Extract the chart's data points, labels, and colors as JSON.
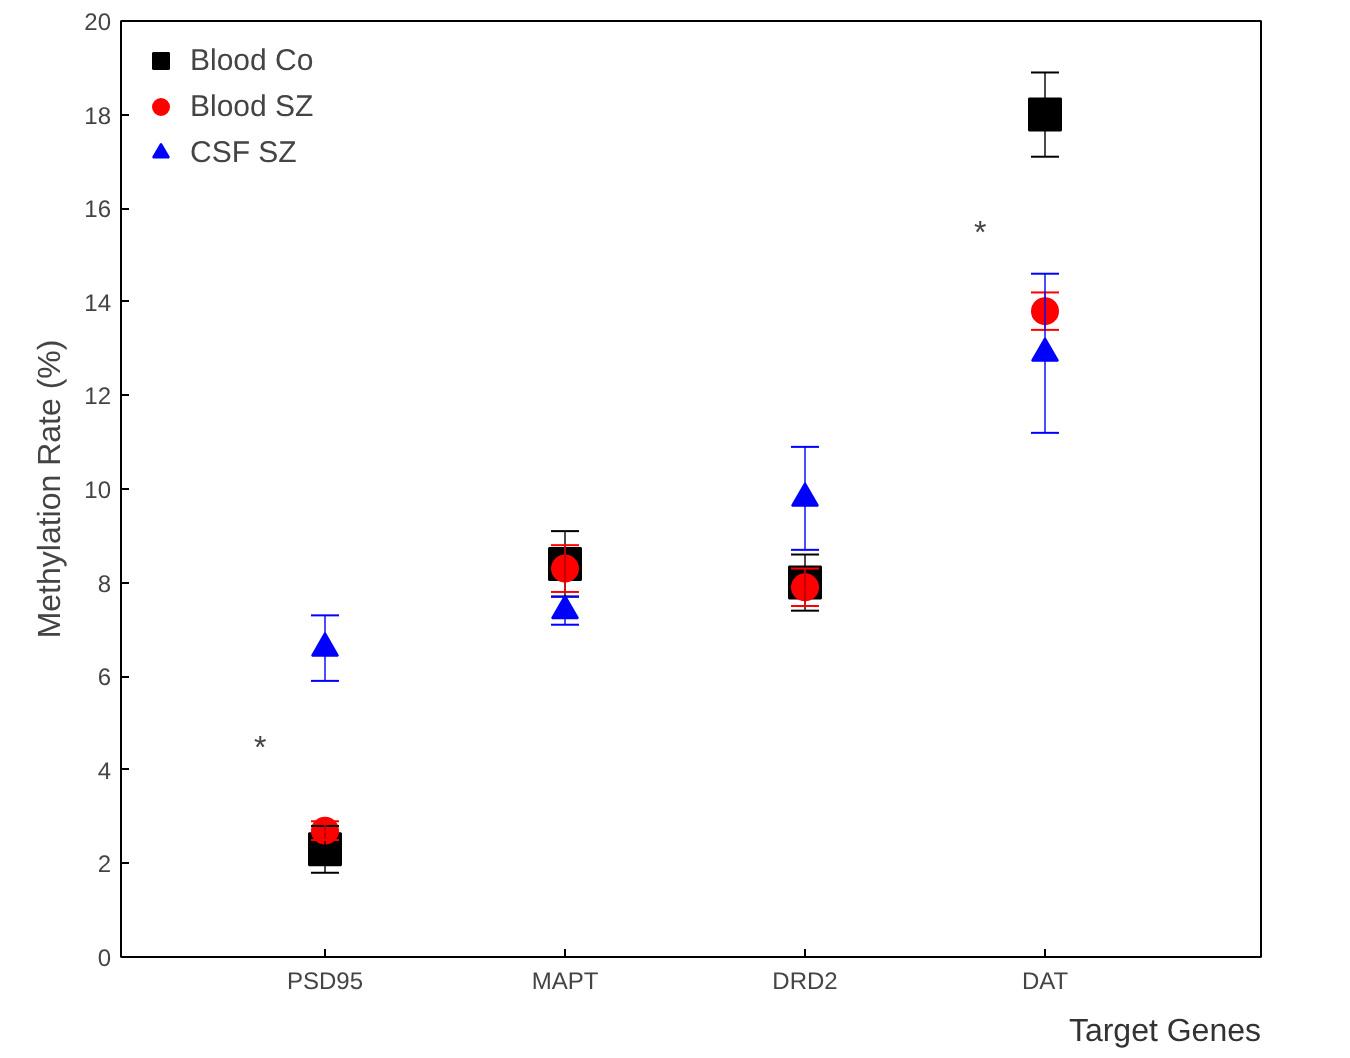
{
  "chart_data": {
    "type": "scatter",
    "xlabel": "Target Genes",
    "ylabel": "Methylation Rate (%)",
    "categories": [
      "PSD95",
      "MAPT",
      "DRD2",
      "DAT"
    ],
    "series": [
      {
        "name": "Blood Co",
        "color": "#000000",
        "marker": "square",
        "values": [
          2.3,
          8.4,
          8.0,
          18.0
        ],
        "errors": [
          0.5,
          0.7,
          0.6,
          0.9
        ]
      },
      {
        "name": "Blood SZ",
        "color": "#ff0000",
        "marker": "circle",
        "values": [
          2.7,
          8.3,
          7.9,
          13.8
        ],
        "errors": [
          0.2,
          0.5,
          0.4,
          0.4
        ]
      },
      {
        "name": "CSF SZ",
        "color": "#0000ff",
        "marker": "triangle",
        "values": [
          6.6,
          7.4,
          9.8,
          12.9
        ],
        "errors": [
          0.7,
          0.3,
          1.1,
          1.7
        ]
      }
    ],
    "ylim": [
      0,
      20
    ],
    "yticks": [
      0,
      2,
      4,
      6,
      8,
      10,
      12,
      14,
      16,
      18,
      20
    ],
    "grid": false,
    "legend": "top left",
    "annotations": [
      "*",
      "*"
    ]
  }
}
